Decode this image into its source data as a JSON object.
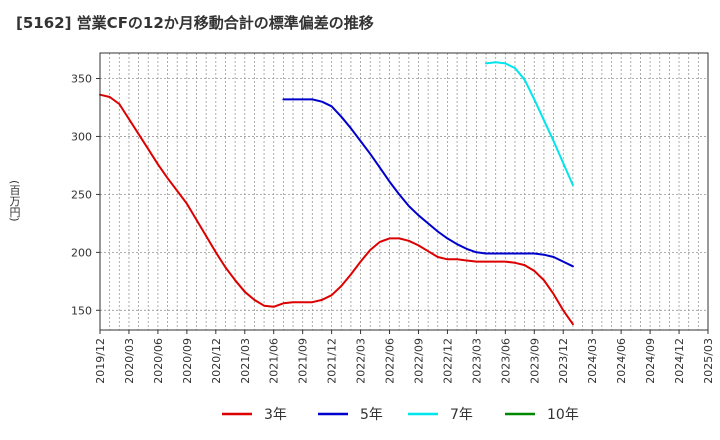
{
  "chart_data": {
    "type": "line",
    "title": "[5162]  営業CFの12か月移動合計の標準偏差の推移",
    "ylabel": "(百万円)",
    "xlabel": "",
    "ylim": [
      133,
      372
    ],
    "yticks": [
      150,
      200,
      250,
      300,
      350
    ],
    "x_ticks": [
      "2019/12",
      "2020/03",
      "2020/06",
      "2020/09",
      "2020/12",
      "2021/03",
      "2021/06",
      "2021/09",
      "2021/12",
      "2022/03",
      "2022/06",
      "2022/09",
      "2022/12",
      "2023/03",
      "2023/06",
      "2023/09",
      "2023/12",
      "2024/03",
      "2024/06",
      "2024/09",
      "2024/12",
      "2025/03"
    ],
    "grid": true,
    "legend_position": "bottom",
    "series": [
      {
        "name": "3年",
        "color": "#dd0000",
        "values": [
          336,
          334,
          328,
          315,
          302,
          289,
          276,
          264,
          253,
          242,
          228,
          214,
          200,
          187,
          176,
          166,
          159,
          154,
          153,
          156,
          157,
          157,
          157,
          159,
          163,
          171,
          181,
          192,
          202,
          209,
          212,
          212,
          210,
          206,
          201,
          196,
          194,
          194,
          193,
          192,
          192,
          192,
          192,
          191,
          189,
          184,
          176,
          164,
          150,
          138
        ]
      },
      {
        "name": "5年",
        "color": "#0000cc",
        "values": [
          null,
          null,
          null,
          null,
          null,
          null,
          null,
          null,
          null,
          null,
          null,
          null,
          null,
          null,
          null,
          null,
          null,
          null,
          null,
          332,
          332,
          332,
          332,
          330,
          326,
          317,
          307,
          296,
          285,
          273,
          261,
          250,
          240,
          232,
          225,
          218,
          212,
          207,
          203,
          200,
          199,
          199,
          199,
          199,
          199,
          199,
          198,
          196,
          192,
          188
        ]
      },
      {
        "name": "7年",
        "color": "#00e5ee",
        "values": [
          null,
          null,
          null,
          null,
          null,
          null,
          null,
          null,
          null,
          null,
          null,
          null,
          null,
          null,
          null,
          null,
          null,
          null,
          null,
          null,
          null,
          null,
          null,
          null,
          null,
          null,
          null,
          null,
          null,
          null,
          null,
          null,
          null,
          null,
          null,
          null,
          null,
          null,
          null,
          null,
          363,
          364,
          363,
          359,
          349,
          332,
          314,
          296,
          277,
          258
        ]
      },
      {
        "name": "10年",
        "color": "#008800",
        "values": []
      }
    ]
  }
}
